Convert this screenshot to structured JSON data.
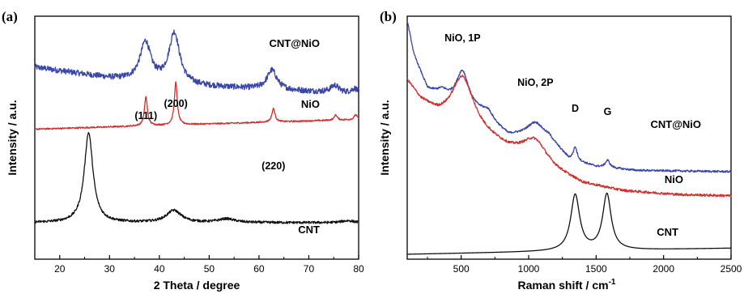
{
  "chart_data": [
    {
      "type": "line",
      "panel_label": "(a)",
      "title": "",
      "xlabel": "2 Theta / degree",
      "ylabel": "Intensity / a.u.",
      "xlim": [
        15,
        80
      ],
      "x_ticks": [
        20,
        30,
        40,
        50,
        60,
        70,
        80
      ],
      "y_ticks_shown": false,
      "grid": false,
      "legend": "none",
      "series": [
        {
          "name": "CNT@NiO",
          "color": "#3a46a8",
          "baseline": 0.68,
          "trend": [
            [
              15,
              0.11
            ],
            [
              30,
              0.065
            ],
            [
              45,
              0.035
            ],
            [
              60,
              0.02
            ],
            [
              80,
              0.0
            ]
          ],
          "peaks": [
            [
              37.2,
              0.16,
              1.3
            ],
            [
              43.0,
              0.21,
              1.3
            ],
            [
              62.6,
              0.08,
              1.2
            ],
            [
              75.2,
              0.03,
              1.0
            ],
            [
              79.2,
              0.02,
              0.8
            ]
          ],
          "noise": 0.012
        },
        {
          "name": "NiO",
          "color": "#d03030",
          "baseline": 0.535,
          "trend": [
            [
              15,
              0.0
            ],
            [
              80,
              0.04
            ]
          ],
          "peaks": [
            [
              37.3,
              0.12,
              0.35
            ],
            [
              43.3,
              0.175,
              0.35
            ],
            [
              62.9,
              0.055,
              0.38
            ],
            [
              75.4,
              0.022,
              0.35
            ],
            [
              79.4,
              0.02,
              0.35
            ]
          ],
          "noise": 0.003
        },
        {
          "name": "CNT",
          "color": "#111111",
          "baseline": 0.15,
          "trend": [
            [
              15,
              0.0
            ],
            [
              80,
              0.0
            ]
          ],
          "peaks": [
            [
              25.8,
              0.37,
              1.05
            ],
            [
              42.9,
              0.05,
              1.8
            ],
            [
              53.5,
              0.015,
              2.0
            ],
            [
              77.8,
              0.008,
              1.5
            ]
          ],
          "noise": 0.005
        }
      ],
      "annotations": [
        {
          "text": "(111)",
          "x": 37.3
        },
        {
          "text": "(200)",
          "x": 43.3
        },
        {
          "text": "(220)",
          "x": 62.9
        }
      ]
    },
    {
      "type": "line",
      "panel_label": "(b)",
      "title": "",
      "xlabel": "Raman shift / cm",
      "xlabel_superscript": "-1",
      "ylabel": "Intensity / a.u.",
      "xlim": [
        100,
        2500
      ],
      "x_ticks": [
        500,
        1000,
        1500,
        2000,
        2500
      ],
      "y_ticks_shown": false,
      "grid": false,
      "legend": "none",
      "series": [
        {
          "name": "CNT@NiO",
          "color": "#3a46a8",
          "baseline": 0.36,
          "trend": [
            [
              100,
              0.62
            ],
            [
              150,
              0.48
            ],
            [
              250,
              0.34
            ],
            [
              400,
              0.3
            ],
            [
              650,
              0.24
            ],
            [
              850,
              0.15
            ],
            [
              1000,
              0.15
            ],
            [
              1150,
              0.14
            ],
            [
              1300,
              0.05
            ],
            [
              1500,
              0.02
            ],
            [
              1800,
              0.005
            ],
            [
              2500,
              0.0
            ]
          ],
          "peaks": [
            [
              360,
              0.02,
              40
            ],
            [
              510,
              0.14,
              55
            ],
            [
              700,
              0.03,
              40
            ],
            [
              1050,
              0.055,
              70
            ],
            [
              1345,
              0.055,
              18
            ],
            [
              1585,
              0.03,
              20
            ]
          ],
          "noise": 0.004
        },
        {
          "name": "NiO",
          "color": "#d03030",
          "baseline": 0.03,
          "trend": [
            [
              100,
              0.7
            ],
            [
              200,
              0.62
            ],
            [
              330,
              0.56
            ],
            [
              600,
              0.5
            ],
            [
              850,
              0.42
            ],
            [
              1000,
              0.39
            ],
            [
              1200,
              0.33
            ],
            [
              1400,
              0.28
            ],
            [
              1700,
              0.25
            ],
            [
              2100,
              0.235
            ],
            [
              2500,
              0.23
            ]
          ],
          "peaks": [
            [
              510,
              0.2,
              95
            ],
            [
              1050,
              0.085,
              105
            ]
          ],
          "noise": 0.005
        },
        {
          "name": "CNT",
          "color": "#111111",
          "baseline": 0.02,
          "trend": [
            [
              100,
              0.0
            ],
            [
              2500,
              0.025
            ]
          ],
          "peaks": [
            [
              1345,
              0.23,
              40
            ],
            [
              1580,
              0.23,
              38
            ]
          ],
          "noise": 0.0
        }
      ],
      "annotations": [
        {
          "text": "NiO, 1P",
          "x": 510
        },
        {
          "text": "NiO, 2P",
          "x": 1050
        },
        {
          "text": "D",
          "x": 1345
        },
        {
          "text": "G",
          "x": 1585
        }
      ]
    }
  ]
}
